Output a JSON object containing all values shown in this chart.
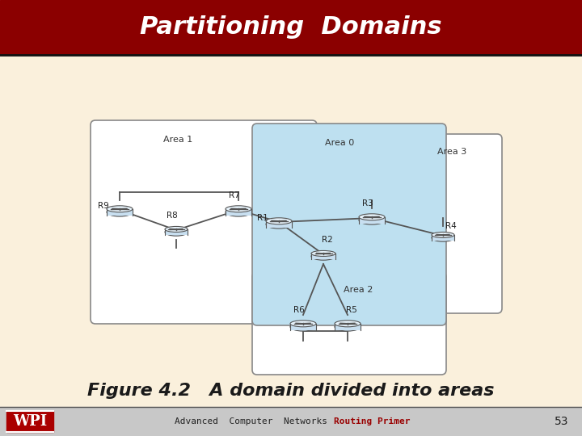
{
  "title": "Partitioning  Domains",
  "title_bg": "#8B0000",
  "title_color": "#FFFFFF",
  "slide_bg": "#FAF0DC",
  "caption": "Figure 4.2   A domain divided into areas",
  "caption_color": "#1a1a1a",
  "footer_bg": "#C8C8C8",
  "footer_text1": "Advanced  Computer  Networks",
  "footer_text2": "Routing Primer",
  "footer_text2_color": "#990000",
  "footer_num": "53",
  "area0_color": "#BEE0F0",
  "area1_color": "#FFFFFF",
  "area2_color": "#FFFFFF",
  "area3_color": "#FFFFFF",
  "box_edge": "#888888",
  "router_body": "#C8DFF0",
  "router_top": "#E8F4FC",
  "router_line": "#555555"
}
